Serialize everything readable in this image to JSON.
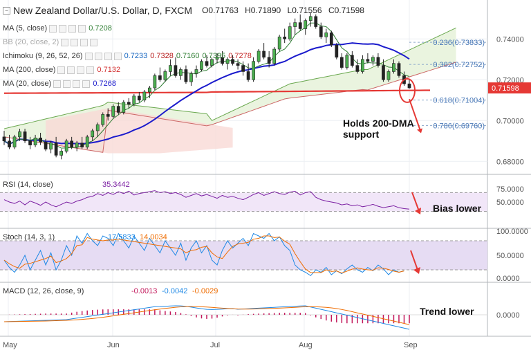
{
  "header": {
    "symbol": "New Zealand Dollar/U.S. Dollar, D, FXCM",
    "open": "O0.71763",
    "high": "H0.71890",
    "low": "L0.71556",
    "close": "C0.71598"
  },
  "indicators": [
    {
      "label": "MA (5, close)",
      "values": [
        {
          "text": "0.7208",
          "color": "#2e7d32"
        }
      ]
    },
    {
      "label": "BB (20, close, 2)",
      "values": [],
      "muted": true
    },
    {
      "label": "Ichimoku (9, 26, 52, 26)",
      "values": [
        {
          "text": "0.7233",
          "color": "#1565c0"
        },
        {
          "text": "0.7328",
          "color": "#b71c1c"
        },
        {
          "text": "0.7160",
          "color": "#2e7d32"
        },
        {
          "text": "0.7395",
          "color": "#2e7d32"
        },
        {
          "text": "0.7278",
          "color": "#c62828"
        }
      ]
    },
    {
      "label": "MA (200, close)",
      "values": [
        {
          "text": "0.7132",
          "color": "#d32f2f"
        }
      ]
    },
    {
      "label": "MA (20, close)",
      "values": [
        {
          "text": "0.7268",
          "color": "#1a1acc"
        }
      ]
    }
  ],
  "price_axis": {
    "ticks": [
      "0.74000",
      "0.72000",
      "0.70000",
      "0.68000"
    ],
    "current": "0.71598",
    "current_color": "#e53935"
  },
  "fib_levels": [
    {
      "label": "0.236(0.73833)",
      "value": 0.73833
    },
    {
      "label": "0.382(0.72752)",
      "value": 0.72752
    },
    {
      "label": "0.618(0.71004)",
      "value": 0.71004
    },
    {
      "label": "0.786(0.69760)",
      "value": 0.6976
    }
  ],
  "annotations": {
    "price": "Holds 200-DMA\nsupport",
    "rsi": "Bias lower",
    "macd": "Trend lower"
  },
  "rsi": {
    "label": "RSI (14, close)",
    "value": "35.3442",
    "value_color": "#7b1fa2",
    "ticks": [
      "75.0000",
      "50.0000"
    ]
  },
  "stoch": {
    "label": "Stoch (14, 3, 1)",
    "k": "17.5833",
    "d": "14.0034",
    "k_color": "#1e88e5",
    "d_color": "#ef6c00",
    "ticks": [
      "100.0000",
      "50.0000",
      "0.0000"
    ]
  },
  "macd": {
    "label": "MACD (12, 26, close, 9)",
    "values": [
      {
        "text": "-0.0013",
        "color": "#c2185b"
      },
      {
        "text": "-0.0042",
        "color": "#1e88e5"
      },
      {
        "text": "-0.0029",
        "color": "#ef6c00"
      }
    ],
    "ticks": [
      "0.0000"
    ]
  },
  "time_axis": [
    "May",
    "Jun",
    "Jul",
    "Aug",
    "Sep"
  ],
  "chart_data": {
    "type": "candlestick",
    "y_range": [
      0.675,
      0.755
    ],
    "candles": [
      [
        0.692,
        0.695,
        0.688,
        0.69
      ],
      [
        0.69,
        0.693,
        0.686,
        0.687
      ],
      [
        0.687,
        0.693,
        0.686,
        0.692
      ],
      [
        0.692,
        0.696,
        0.69,
        0.6945
      ],
      [
        0.6945,
        0.696,
        0.689,
        0.69
      ],
      [
        0.69,
        0.692,
        0.686,
        0.688
      ],
      [
        0.688,
        0.693,
        0.687,
        0.6915
      ],
      [
        0.6915,
        0.694,
        0.688,
        0.6895
      ],
      [
        0.6895,
        0.691,
        0.685,
        0.686
      ],
      [
        0.686,
        0.69,
        0.684,
        0.689
      ],
      [
        0.689,
        0.692,
        0.682,
        0.683
      ],
      [
        0.683,
        0.686,
        0.681,
        0.685
      ],
      [
        0.685,
        0.691,
        0.684,
        0.69
      ],
      [
        0.69,
        0.692,
        0.686,
        0.687
      ],
      [
        0.687,
        0.69,
        0.685,
        0.689
      ],
      [
        0.689,
        0.692,
        0.686,
        0.687
      ],
      [
        0.687,
        0.693,
        0.686,
        0.692
      ],
      [
        0.692,
        0.696,
        0.69,
        0.695
      ],
      [
        0.695,
        0.699,
        0.692,
        0.698
      ],
      [
        0.698,
        0.704,
        0.697,
        0.703
      ],
      [
        0.703,
        0.706,
        0.7,
        0.702
      ],
      [
        0.702,
        0.708,
        0.701,
        0.707
      ],
      [
        0.707,
        0.709,
        0.703,
        0.704
      ],
      [
        0.704,
        0.71,
        0.703,
        0.709
      ],
      [
        0.709,
        0.711,
        0.706,
        0.708
      ],
      [
        0.708,
        0.713,
        0.707,
        0.712
      ],
      [
        0.712,
        0.714,
        0.709,
        0.71
      ],
      [
        0.71,
        0.715,
        0.709,
        0.714
      ],
      [
        0.714,
        0.717,
        0.711,
        0.716
      ],
      [
        0.716,
        0.723,
        0.715,
        0.722
      ],
      [
        0.722,
        0.726,
        0.719,
        0.72
      ],
      [
        0.72,
        0.725,
        0.719,
        0.724
      ],
      [
        0.724,
        0.73,
        0.722,
        0.727
      ],
      [
        0.727,
        0.731,
        0.721,
        0.722
      ],
      [
        0.722,
        0.726,
        0.72,
        0.725
      ],
      [
        0.725,
        0.727,
        0.718,
        0.719
      ],
      [
        0.719,
        0.724,
        0.717,
        0.723
      ],
      [
        0.723,
        0.727,
        0.721,
        0.725
      ],
      [
        0.725,
        0.73,
        0.724,
        0.729
      ],
      [
        0.729,
        0.732,
        0.726,
        0.727
      ],
      [
        0.727,
        0.731,
        0.726,
        0.73
      ],
      [
        0.73,
        0.733,
        0.728,
        0.731
      ],
      [
        0.731,
        0.734,
        0.727,
        0.728
      ],
      [
        0.728,
        0.731,
        0.725,
        0.73
      ],
      [
        0.73,
        0.732,
        0.727,
        0.728
      ],
      [
        0.728,
        0.73,
        0.725,
        0.727
      ],
      [
        0.727,
        0.729,
        0.722,
        0.724
      ],
      [
        0.724,
        0.728,
        0.719,
        0.72
      ],
      [
        0.72,
        0.731,
        0.719,
        0.729
      ],
      [
        0.729,
        0.735,
        0.728,
        0.734
      ],
      [
        0.734,
        0.738,
        0.73,
        0.731
      ],
      [
        0.731,
        0.734,
        0.726,
        0.728
      ],
      [
        0.728,
        0.736,
        0.727,
        0.735
      ],
      [
        0.735,
        0.742,
        0.734,
        0.741
      ],
      [
        0.741,
        0.745,
        0.738,
        0.74
      ],
      [
        0.74,
        0.748,
        0.739,
        0.746
      ],
      [
        0.746,
        0.75,
        0.742,
        0.748
      ],
      [
        0.748,
        0.752,
        0.744,
        0.745
      ],
      [
        0.745,
        0.75,
        0.742,
        0.749
      ],
      [
        0.749,
        0.753,
        0.746,
        0.751
      ],
      [
        0.751,
        0.752,
        0.745,
        0.746
      ],
      [
        0.746,
        0.748,
        0.74,
        0.741
      ],
      [
        0.741,
        0.745,
        0.738,
        0.743
      ],
      [
        0.743,
        0.744,
        0.736,
        0.737
      ],
      [
        0.737,
        0.738,
        0.73,
        0.731
      ],
      [
        0.731,
        0.733,
        0.725,
        0.726
      ],
      [
        0.726,
        0.733,
        0.725,
        0.732
      ],
      [
        0.732,
        0.734,
        0.726,
        0.727
      ],
      [
        0.727,
        0.73,
        0.723,
        0.724
      ],
      [
        0.724,
        0.732,
        0.723,
        0.73
      ],
      [
        0.73,
        0.733,
        0.728,
        0.729
      ],
      [
        0.729,
        0.732,
        0.727,
        0.731
      ],
      [
        0.731,
        0.733,
        0.726,
        0.727
      ],
      [
        0.727,
        0.73,
        0.719,
        0.72
      ],
      [
        0.72,
        0.725,
        0.719,
        0.724
      ],
      [
        0.724,
        0.73,
        0.723,
        0.728
      ],
      [
        0.728,
        0.729,
        0.721,
        0.722
      ],
      [
        0.722,
        0.724,
        0.717,
        0.718
      ],
      [
        0.718,
        0.72,
        0.7156,
        0.716
      ]
    ],
    "title": "New Zealand Dollar/U.S. Dollar, D, FXCM"
  }
}
